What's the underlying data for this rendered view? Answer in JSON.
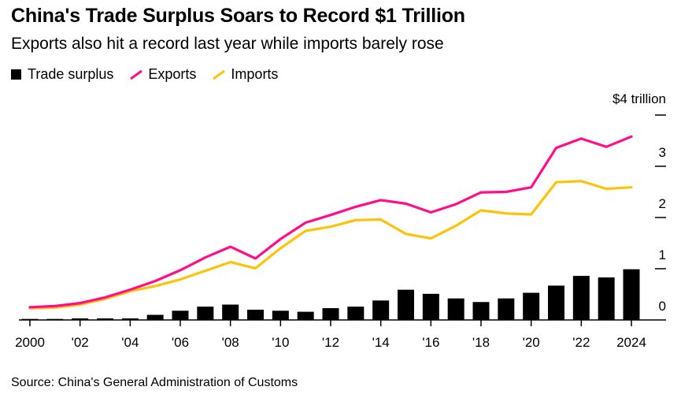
{
  "title": "China's Trade Surplus Soars to Record $1 Trillion",
  "subtitle": "Exports also hit a record last year while imports barely rose",
  "source": "Source: China's General Administration of Customs",
  "colors": {
    "surplus": "#000000",
    "exports": "#ff0d8a",
    "imports": "#fcc30a"
  },
  "legend": [
    {
      "label": "Trade surplus",
      "shape": "square",
      "color": "#000000"
    },
    {
      "label": "Exports",
      "shape": "line",
      "color": "#ff0d8a"
    },
    {
      "label": "Imports",
      "shape": "line",
      "color": "#fcc30a"
    }
  ],
  "chart_data": {
    "type": "bar+line",
    "x": [
      2000,
      2001,
      2002,
      2003,
      2004,
      2005,
      2006,
      2007,
      2008,
      2009,
      2010,
      2011,
      2012,
      2013,
      2014,
      2015,
      2016,
      2017,
      2018,
      2019,
      2020,
      2021,
      2022,
      2023,
      2024
    ],
    "x_tick_labels": [
      "2000",
      "'02",
      "'04",
      "'06",
      "'08",
      "'10",
      "'12",
      "'14",
      "'16",
      "'18",
      "'20",
      "'22",
      "2024"
    ],
    "x_tick_years": [
      2000,
      2002,
      2004,
      2006,
      2008,
      2010,
      2012,
      2014,
      2016,
      2018,
      2020,
      2022,
      2024
    ],
    "y_tick_labels": [
      "0",
      "1",
      "2",
      "3",
      "$4 trillion"
    ],
    "y_tick_values": [
      0,
      1,
      2,
      3,
      4
    ],
    "ylim": [
      0,
      4
    ],
    "series": [
      {
        "name": "Trade surplus",
        "kind": "bar",
        "values": [
          0.02,
          0.02,
          0.03,
          0.03,
          0.03,
          0.1,
          0.18,
          0.26,
          0.3,
          0.2,
          0.18,
          0.16,
          0.23,
          0.26,
          0.38,
          0.59,
          0.51,
          0.42,
          0.35,
          0.42,
          0.53,
          0.67,
          0.86,
          0.83,
          0.99
        ]
      },
      {
        "name": "Exports",
        "kind": "line",
        "values": [
          0.25,
          0.27,
          0.33,
          0.44,
          0.59,
          0.76,
          0.97,
          1.22,
          1.43,
          1.2,
          1.58,
          1.9,
          2.05,
          2.21,
          2.34,
          2.27,
          2.1,
          2.26,
          2.49,
          2.5,
          2.59,
          3.36,
          3.54,
          3.38,
          3.58
        ]
      },
      {
        "name": "Imports",
        "kind": "line",
        "values": [
          0.23,
          0.24,
          0.3,
          0.41,
          0.56,
          0.66,
          0.79,
          0.96,
          1.13,
          1.01,
          1.4,
          1.74,
          1.82,
          1.95,
          1.96,
          1.68,
          1.59,
          1.84,
          2.14,
          2.08,
          2.06,
          2.69,
          2.71,
          2.56,
          2.59
        ]
      }
    ]
  }
}
